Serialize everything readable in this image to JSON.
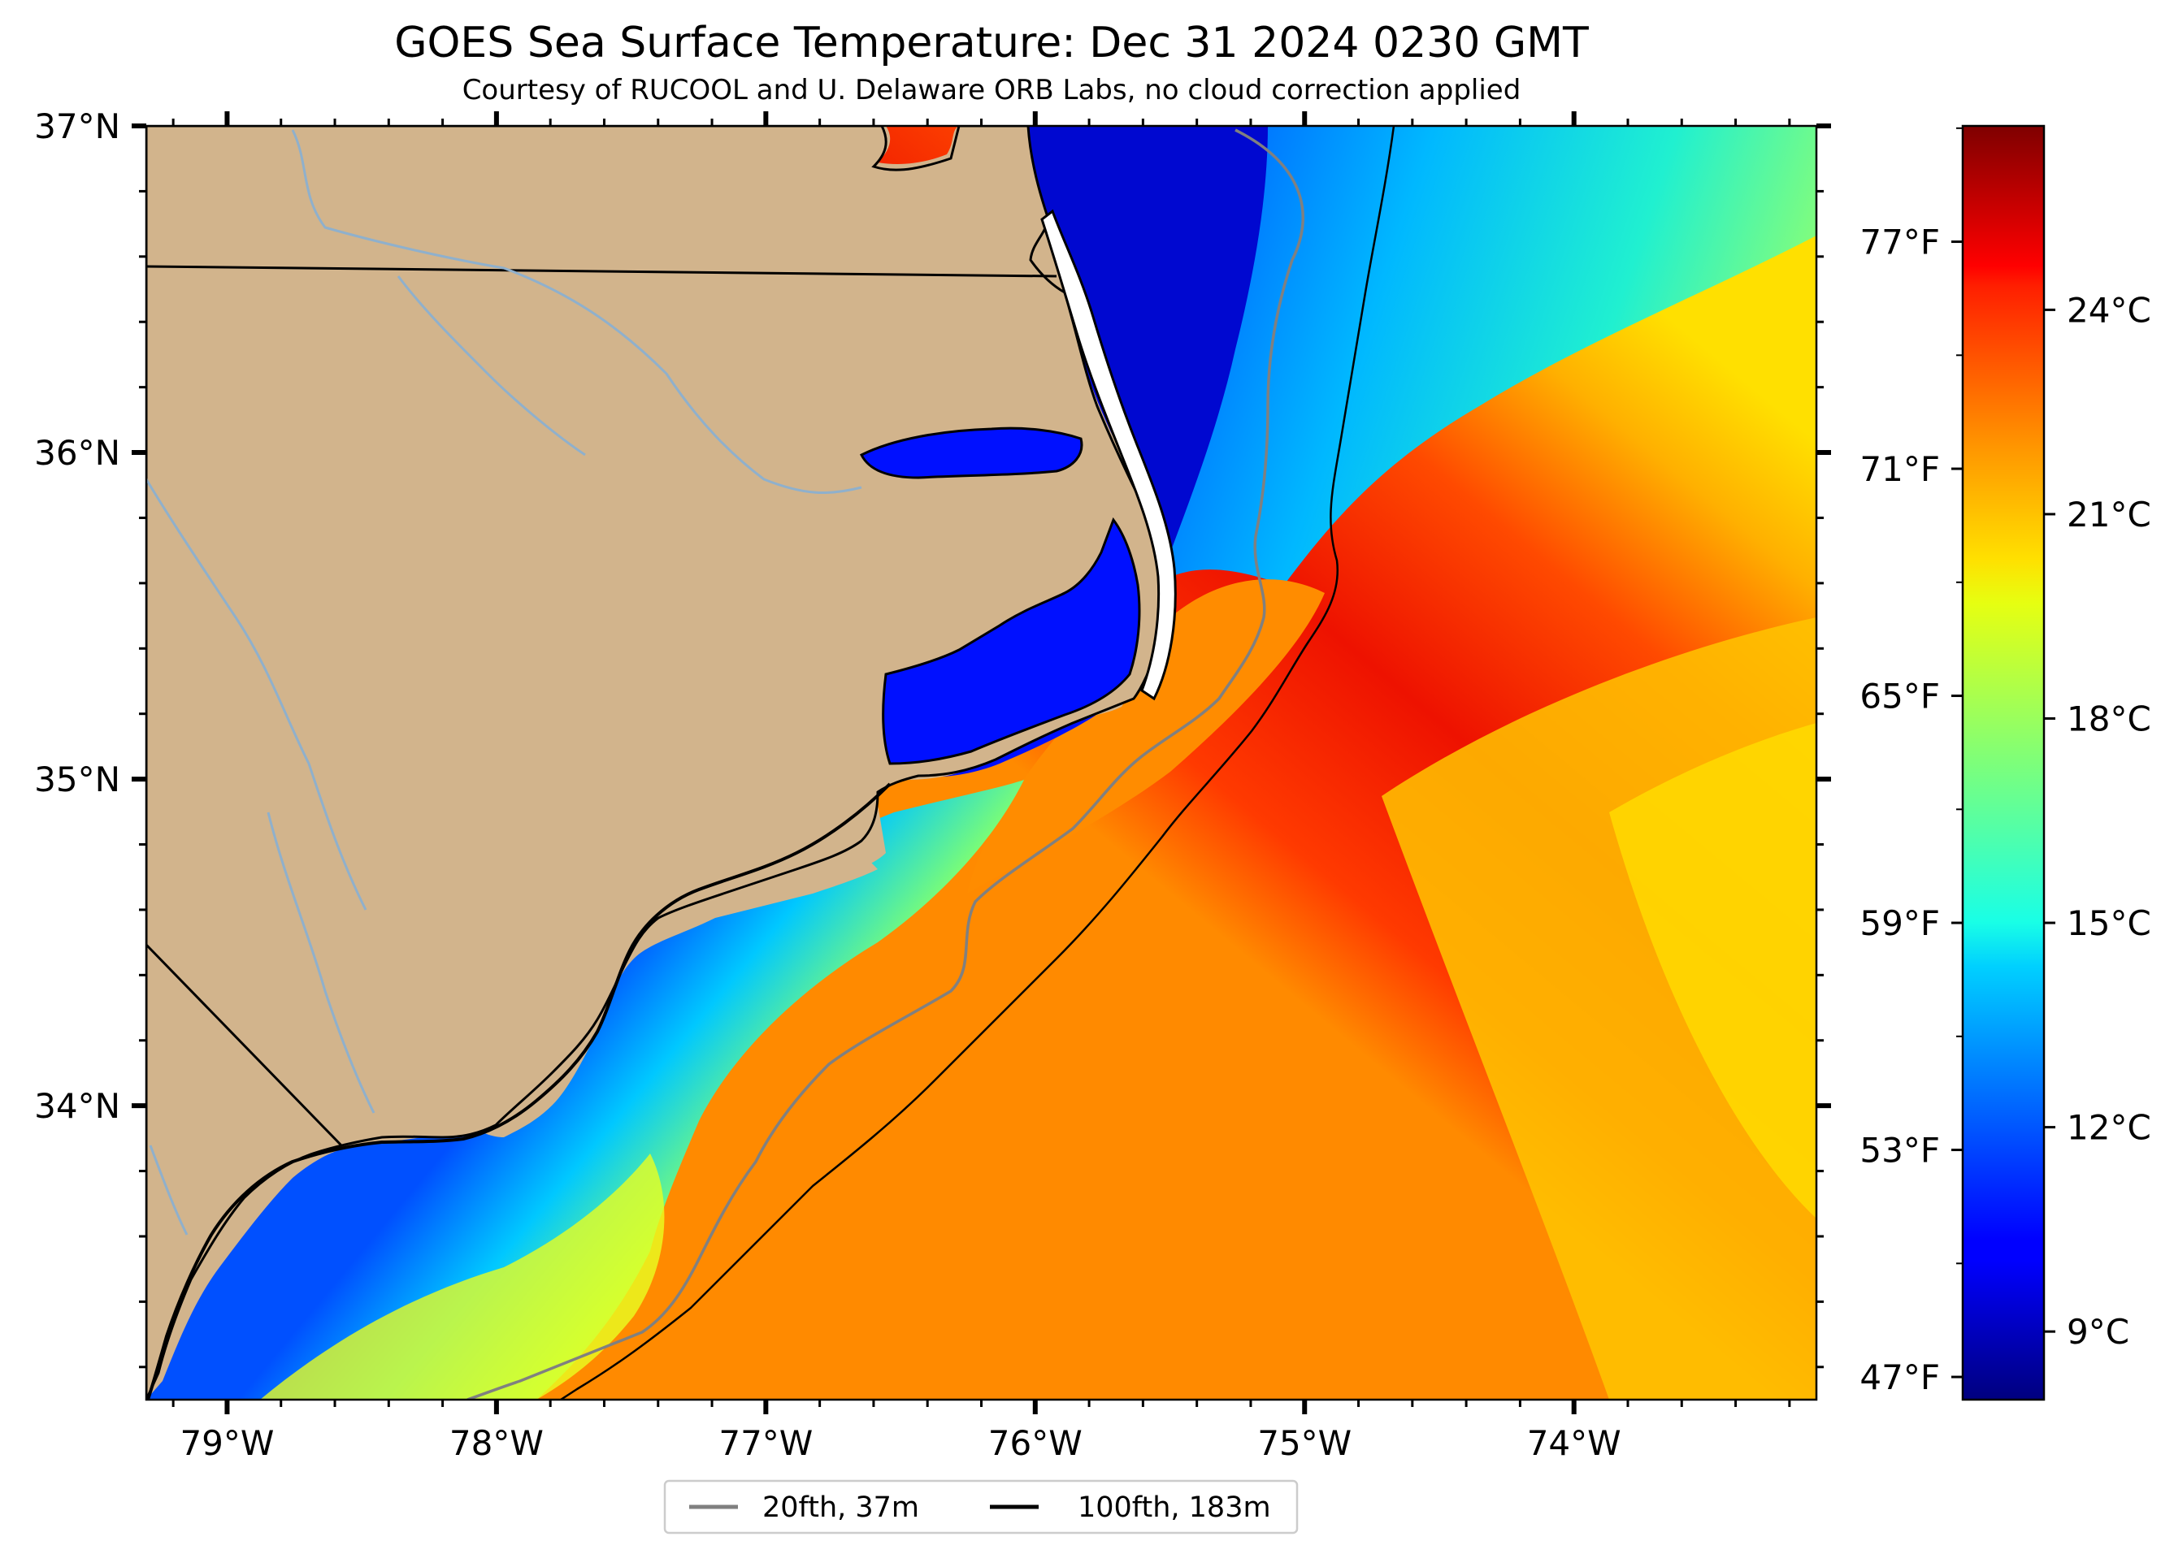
{
  "title": "GOES Sea Surface Temperature: Dec 31 2024 0230 GMT",
  "subtitle": "Courtesy of RUCOOL and U. Delaware ORB Labs, no cloud correction applied",
  "map": {
    "lon_range": [
      -79.3,
      -73.1
    ],
    "lat_range": [
      33.1,
      37.0
    ],
    "lat_ticks": [
      {
        "value": 37,
        "label": "37°N"
      },
      {
        "value": 36,
        "label": "36°N"
      },
      {
        "value": 35,
        "label": "35°N"
      },
      {
        "value": 34,
        "label": "34°N"
      }
    ],
    "lon_ticks": [
      {
        "value": -79,
        "label": "79°W"
      },
      {
        "value": -78,
        "label": "78°W"
      },
      {
        "value": -77,
        "label": "77°W"
      },
      {
        "value": -76,
        "label": "76°W"
      },
      {
        "value": -75,
        "label": "75°W"
      },
      {
        "value": -74,
        "label": "74°W"
      }
    ],
    "colors": {
      "land": "#d2b48c",
      "state_border": "#000000",
      "river": "#8fb0cc",
      "isobath_20": "#808080",
      "isobath_100": "#000000"
    }
  },
  "colorbar": {
    "colormap": "jet",
    "range_c": [
      8.0,
      26.7
    ],
    "celsius_ticks": [
      {
        "value": 9,
        "label": "9°C"
      },
      {
        "value": 12,
        "label": "12°C"
      },
      {
        "value": 15,
        "label": "15°C"
      },
      {
        "value": 18,
        "label": "18°C"
      },
      {
        "value": 21,
        "label": "21°C"
      },
      {
        "value": 24,
        "label": "24°C"
      }
    ],
    "fahrenheit_ticks": [
      {
        "value": 47,
        "label": "47°F"
      },
      {
        "value": 53,
        "label": "53°F"
      },
      {
        "value": 59,
        "label": "59°F"
      },
      {
        "value": 65,
        "label": "65°F"
      },
      {
        "value": 71,
        "label": "71°F"
      },
      {
        "value": 77,
        "label": "77°F"
      }
    ]
  },
  "legend": {
    "items": [
      {
        "label": "20fth, 37m",
        "color": "#808080"
      },
      {
        "label": "100fth, 183m",
        "color": "#000000"
      }
    ]
  }
}
